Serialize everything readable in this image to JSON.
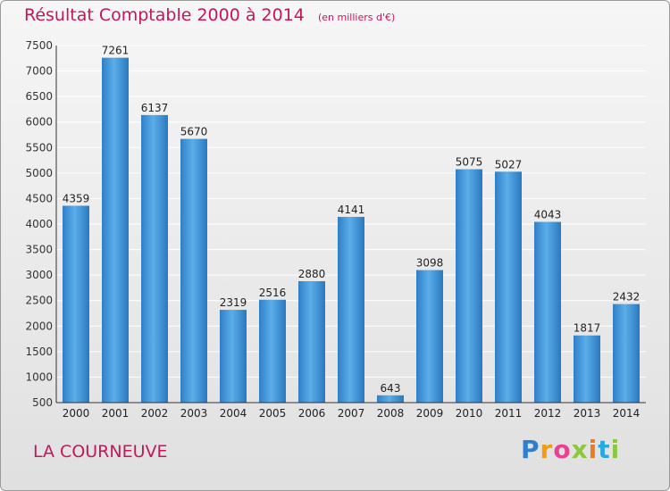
{
  "chart_data": {
    "type": "bar",
    "title": "Résultat Comptable 2000 à 2014",
    "subtitle": "(en milliers d'€)",
    "categories": [
      "2000",
      "2001",
      "2002",
      "2003",
      "2004",
      "2005",
      "2006",
      "2007",
      "2008",
      "2009",
      "2010",
      "2011",
      "2012",
      "2013",
      "2014"
    ],
    "values": [
      4359,
      7261,
      6137,
      5670,
      2319,
      2516,
      2880,
      4141,
      643,
      3098,
      5075,
      5027,
      4043,
      1817,
      2432
    ],
    "ylim": [
      500,
      7500
    ],
    "yticks": [
      500,
      1000,
      1500,
      2000,
      2500,
      3000,
      3500,
      4000,
      4500,
      5000,
      5500,
      6000,
      6500,
      7000,
      7500
    ],
    "grid": true,
    "bar_color": "#3d8fd6",
    "xlabel": "",
    "ylabel": ""
  },
  "location": "LA COURNEUVE",
  "logo": {
    "letters": [
      "P",
      "r",
      "o",
      "x",
      "i",
      "t",
      "i"
    ],
    "colors": [
      "#2f7fd0",
      "#f39c12",
      "#e84393",
      "#8dc63f",
      "#e67e22",
      "#29a9e1",
      "#8dc63f"
    ]
  },
  "colors": {
    "title": "#c2185b",
    "grid": "#ffffff",
    "axis": "#333333"
  }
}
